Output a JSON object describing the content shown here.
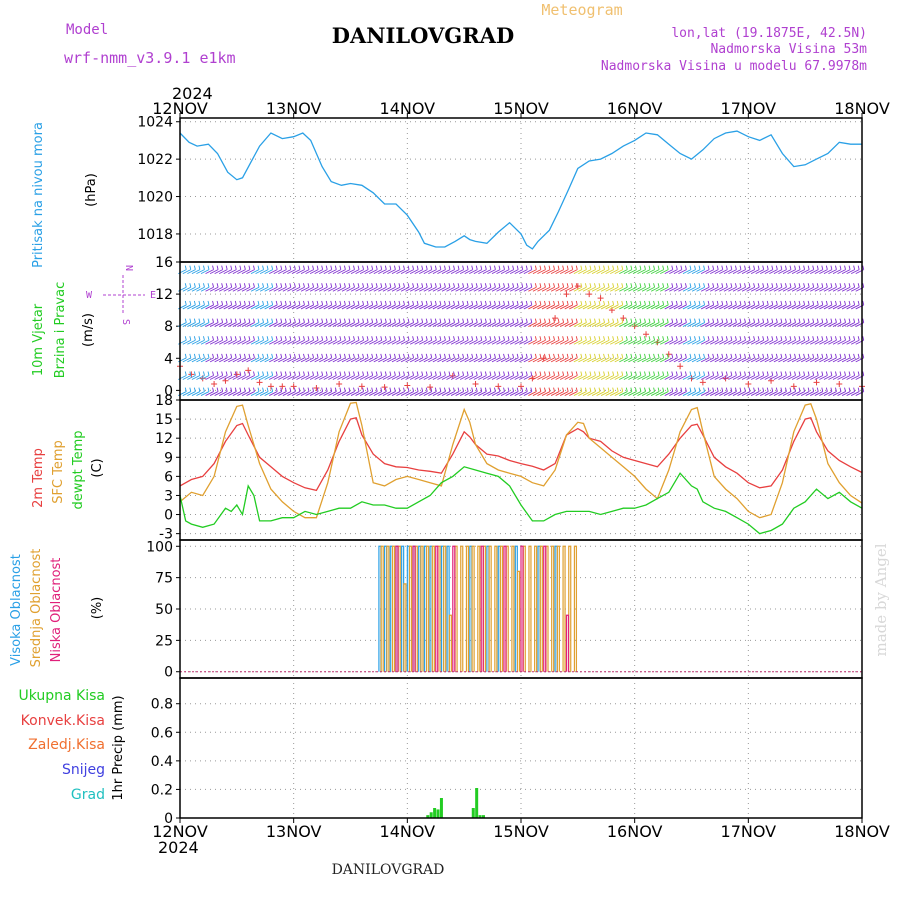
{
  "header": {
    "model_label": "Model",
    "model_name": "wrf-nmm_v3.9.1 e1km",
    "title": "DANILOVGRAD",
    "subtitle": "Meteogram",
    "lonlat": "lon,lat (19.1875E, 42.5N)",
    "elevation": "Nadmorska Visina 53m",
    "model_elevation": "Nadmorska Visina u modelu 67.9978m",
    "year": "2024",
    "footer_title": "DANILOVGRAD",
    "watermark": "made by Angel"
  },
  "colors": {
    "pressure": "#2aa0e6",
    "wind_label": "#22cc22",
    "t2m": "#e84040",
    "sfc": "#e0a030",
    "dewpt": "#22cc22",
    "high_cloud": "#2aa0e6",
    "mid_cloud": "#e0a030",
    "low_cloud": "#e0207a",
    "total_precip": "#22cc22",
    "conv_precip": "#e84040",
    "frz_precip": "#f07030",
    "snow": "#4040e0",
    "grad": "#20c0c0",
    "violet": "#b040d0",
    "frame": "#000000",
    "grid": "#999999"
  },
  "chart_data": [
    {
      "type": "line",
      "panel": "pressure",
      "ylabels": [
        "Pritisak na nivou mora",
        "(hPa)"
      ],
      "x_ticks": [
        "12NOV",
        "13NOV",
        "14NOV",
        "15NOV",
        "16NOV",
        "17NOV",
        "18NOV"
      ],
      "x_range_days": [
        0,
        6
      ],
      "ylim": [
        1016.5,
        1024.2
      ],
      "y_ticks": [
        1018,
        1020,
        1022,
        1024
      ],
      "series": [
        {
          "color": "pressure",
          "x": [
            0,
            0.08,
            0.15,
            0.25,
            0.33,
            0.42,
            0.5,
            0.55,
            0.62,
            0.7,
            0.8,
            0.9,
            1.0,
            1.08,
            1.15,
            1.25,
            1.33,
            1.42,
            1.5,
            1.6,
            1.7,
            1.8,
            1.9,
            2.0,
            2.1,
            2.15,
            2.25,
            2.33,
            2.42,
            2.5,
            2.55,
            2.6,
            2.7,
            2.8,
            2.9,
            3.0,
            3.05,
            3.1,
            3.15,
            3.25,
            3.33,
            3.42,
            3.5,
            3.6,
            3.7,
            3.8,
            3.9,
            4.0,
            4.1,
            4.2,
            4.3,
            4.4,
            4.5,
            4.6,
            4.7,
            4.8,
            4.9,
            5.0,
            5.1,
            5.2,
            5.3,
            5.4,
            5.5,
            5.6,
            5.7,
            5.8,
            5.9,
            6.0
          ],
          "y": [
            1023.4,
            1022.9,
            1022.7,
            1022.8,
            1022.3,
            1021.3,
            1020.9,
            1021.0,
            1021.8,
            1022.7,
            1023.4,
            1023.1,
            1023.2,
            1023.4,
            1023.0,
            1021.6,
            1020.8,
            1020.6,
            1020.7,
            1020.6,
            1020.2,
            1019.6,
            1019.6,
            1019.0,
            1018.1,
            1017.5,
            1017.3,
            1017.3,
            1017.6,
            1017.9,
            1017.7,
            1017.6,
            1017.5,
            1018.1,
            1018.6,
            1018.0,
            1017.4,
            1017.2,
            1017.6,
            1018.2,
            1019.2,
            1020.4,
            1021.5,
            1021.9,
            1022.0,
            1022.3,
            1022.7,
            1023.0,
            1023.4,
            1023.3,
            1022.8,
            1022.3,
            1022.0,
            1022.5,
            1023.1,
            1023.4,
            1023.5,
            1023.2,
            1023.0,
            1023.3,
            1022.3,
            1021.6,
            1021.7,
            1022.0,
            1022.3,
            1022.9,
            1022.8,
            1022.8
          ]
        }
      ]
    },
    {
      "type": "line",
      "panel": "wind",
      "ylabels": [
        "10m Vjetar",
        "Brzina i Pravac",
        "(m/s)"
      ],
      "compass": [
        "N",
        "W",
        "E",
        "S"
      ],
      "ylim": [
        -1.2,
        16
      ],
      "y_ticks": [
        0,
        4,
        8,
        12,
        16
      ],
      "series": [
        {
          "color": "t2m",
          "marker": "+",
          "x": [
            0,
            0.1,
            0.2,
            0.3,
            0.4,
            0.5,
            0.6,
            0.7,
            0.8,
            0.9,
            1.0,
            1.2,
            1.4,
            1.6,
            1.8,
            2.0,
            2.2,
            2.4,
            2.6,
            2.8,
            3.0,
            3.1,
            3.2,
            3.3,
            3.4,
            3.5,
            3.6,
            3.7,
            3.8,
            3.9,
            4.0,
            4.1,
            4.2,
            4.3,
            4.4,
            4.5,
            4.6,
            4.8,
            5.0,
            5.2,
            5.4,
            5.6,
            5.8,
            6.0
          ],
          "y": [
            3,
            2,
            1.5,
            0.8,
            1.2,
            2,
            2.5,
            1,
            0.5,
            0.5,
            0.5,
            0.3,
            0.8,
            0.5,
            0.4,
            0.6,
            0.4,
            1.8,
            0.8,
            0.5,
            0.5,
            1.5,
            4,
            9,
            12,
            13,
            12,
            11.5,
            10,
            9,
            8,
            7,
            6,
            4.5,
            3,
            1.5,
            1,
            1.5,
            0.8,
            1.2,
            0.5,
            1,
            0.8,
            0.5
          ]
        }
      ]
    },
    {
      "type": "line",
      "panel": "temperature",
      "ylabels": [
        "2m Temp",
        "SFC Temp",
        "dewpt Temp",
        "(C)"
      ],
      "ylim": [
        -4,
        18
      ],
      "y_ticks": [
        -3,
        0,
        3,
        6,
        9,
        12,
        15,
        18
      ],
      "series": [
        {
          "color": "t2m",
          "x": [
            0,
            0.1,
            0.2,
            0.3,
            0.4,
            0.5,
            0.55,
            0.6,
            0.7,
            0.8,
            0.9,
            1.0,
            1.1,
            1.2,
            1.3,
            1.4,
            1.5,
            1.55,
            1.6,
            1.7,
            1.8,
            1.9,
            2.0,
            2.1,
            2.2,
            2.3,
            2.4,
            2.5,
            2.55,
            2.6,
            2.7,
            2.8,
            2.9,
            3.0,
            3.1,
            3.2,
            3.3,
            3.4,
            3.5,
            3.55,
            3.6,
            3.7,
            3.8,
            3.9,
            4.0,
            4.1,
            4.2,
            4.3,
            4.4,
            4.5,
            4.55,
            4.6,
            4.7,
            4.8,
            4.9,
            5.0,
            5.1,
            5.2,
            5.3,
            5.4,
            5.5,
            5.55,
            5.6,
            5.7,
            5.8,
            5.9,
            6.0
          ],
          "y": [
            4.5,
            5.5,
            6.0,
            8.0,
            11.5,
            14.0,
            14.3,
            12.5,
            9.0,
            7.5,
            6.0,
            5.0,
            4.2,
            3.8,
            7.0,
            11.5,
            15.0,
            15.2,
            12.5,
            9.5,
            8.0,
            7.5,
            7.4,
            7.0,
            6.8,
            6.5,
            9.5,
            13.0,
            12.2,
            11.0,
            9.5,
            9.2,
            8.5,
            8.0,
            7.6,
            7.0,
            8.0,
            12.5,
            13.5,
            13.0,
            12.0,
            11.5,
            10.0,
            9.0,
            8.5,
            8.0,
            7.5,
            9.5,
            12.0,
            14.0,
            14.2,
            12.5,
            9.0,
            7.5,
            6.5,
            5.0,
            4.2,
            4.5,
            7.0,
            11.5,
            15.0,
            15.2,
            13.0,
            10.0,
            8.5,
            7.5,
            6.6
          ]
        },
        {
          "color": "sfc",
          "x": [
            0,
            0.1,
            0.2,
            0.3,
            0.4,
            0.5,
            0.55,
            0.6,
            0.7,
            0.8,
            0.9,
            1.0,
            1.1,
            1.2,
            1.3,
            1.4,
            1.5,
            1.55,
            1.6,
            1.7,
            1.8,
            1.9,
            2.0,
            2.1,
            2.2,
            2.3,
            2.4,
            2.5,
            2.55,
            2.6,
            2.7,
            2.8,
            2.9,
            3.0,
            3.1,
            3.2,
            3.3,
            3.4,
            3.5,
            3.55,
            3.6,
            3.7,
            3.8,
            3.9,
            4.0,
            4.1,
            4.2,
            4.3,
            4.4,
            4.5,
            4.55,
            4.6,
            4.7,
            4.8,
            4.9,
            5.0,
            5.1,
            5.2,
            5.3,
            5.4,
            5.5,
            5.55,
            5.6,
            5.7,
            5.8,
            5.9,
            6.0
          ],
          "y": [
            2.0,
            3.5,
            3.0,
            6.0,
            13.0,
            17.0,
            17.2,
            14.0,
            8.0,
            4.0,
            2.0,
            0.5,
            -0.5,
            -0.5,
            5.0,
            13.0,
            17.5,
            17.6,
            14.0,
            5.0,
            4.5,
            5.5,
            6.0,
            5.5,
            5.0,
            4.5,
            11.0,
            16.5,
            14.5,
            11.0,
            8.0,
            7.0,
            6.5,
            6.0,
            5.0,
            4.5,
            7.0,
            12.5,
            14.5,
            14.3,
            12.0,
            10.5,
            9.0,
            7.5,
            6.0,
            4.0,
            2.5,
            7.0,
            13.0,
            16.5,
            16.8,
            13.0,
            6.0,
            4.0,
            2.5,
            0.5,
            -0.5,
            0.0,
            5.0,
            13.0,
            17.2,
            17.4,
            15.0,
            8.0,
            5.0,
            3.0,
            1.8
          ]
        },
        {
          "color": "dewpt",
          "x": [
            0,
            0.05,
            0.1,
            0.2,
            0.3,
            0.4,
            0.45,
            0.5,
            0.55,
            0.6,
            0.65,
            0.7,
            0.8,
            0.9,
            1.0,
            1.1,
            1.2,
            1.3,
            1.4,
            1.5,
            1.6,
            1.7,
            1.8,
            1.9,
            2.0,
            2.1,
            2.2,
            2.3,
            2.4,
            2.5,
            2.6,
            2.7,
            2.8,
            2.9,
            3.0,
            3.1,
            3.2,
            3.3,
            3.4,
            3.5,
            3.6,
            3.7,
            3.8,
            3.9,
            4.0,
            4.1,
            4.2,
            4.3,
            4.4,
            4.5,
            4.55,
            4.6,
            4.7,
            4.8,
            4.9,
            5.0,
            5.1,
            5.2,
            5.3,
            5.4,
            5.5,
            5.6,
            5.7,
            5.8,
            5.9,
            6.0
          ],
          "y": [
            3.0,
            -1.0,
            -1.5,
            -2.0,
            -1.5,
            1.0,
            0.5,
            1.5,
            0.0,
            4.5,
            3.0,
            -1.0,
            -1.0,
            -0.5,
            -0.5,
            0.5,
            0.0,
            0.5,
            1.0,
            1.0,
            2.0,
            1.5,
            1.5,
            1.0,
            1.0,
            2.0,
            3.0,
            5.0,
            6.0,
            7.5,
            7.0,
            6.5,
            6.0,
            4.5,
            1.5,
            -1.0,
            -1.0,
            0.0,
            0.5,
            0.5,
            0.5,
            0.0,
            0.5,
            1.0,
            1.0,
            1.5,
            2.5,
            3.5,
            6.5,
            4.5,
            4.0,
            2.0,
            1.0,
            0.5,
            -0.5,
            -1.5,
            -3.0,
            -2.5,
            -1.5,
            1.0,
            2.0,
            4.0,
            2.5,
            3.5,
            2.0,
            1.0
          ]
        }
      ]
    },
    {
      "type": "bar",
      "panel": "clouds",
      "ylabels": [
        "Visoka Oblacnost",
        "Srednja Oblacnost",
        "Niska Oblacnost",
        "(%)"
      ],
      "ylim": [
        -5,
        105
      ],
      "y_ticks": [
        0,
        25,
        50,
        75,
        100
      ],
      "series": [
        {
          "name": "Visoka Oblacnost",
          "color": "high_cloud",
          "x": [
            1.75,
            1.8,
            1.85,
            1.9,
            1.95,
            2.0,
            2.05,
            2.1,
            2.15,
            2.2,
            2.3,
            2.35,
            2.55,
            2.7,
            2.8,
            2.95,
            3.15,
            3.3
          ],
          "values": [
            100,
            100,
            100,
            100,
            100,
            100,
            100,
            100,
            100,
            100,
            100,
            100,
            100,
            100,
            100,
            100,
            100,
            100
          ]
        },
        {
          "name": "Srednja Oblacnost",
          "color": "mid_cloud",
          "x": [
            1.77,
            1.82,
            1.87,
            1.92,
            1.97,
            2.02,
            2.07,
            2.12,
            2.17,
            2.22,
            2.27,
            2.32,
            2.37,
            2.42,
            2.47,
            2.52,
            2.57,
            2.62,
            2.67,
            2.72,
            2.77,
            2.82,
            2.87,
            2.92,
            2.97,
            3.02,
            3.07,
            3.12,
            3.17,
            3.22,
            3.27,
            3.32,
            3.37,
            3.42,
            3.47
          ],
          "values": [
            100,
            100,
            100,
            100,
            70,
            100,
            100,
            100,
            100,
            100,
            100,
            100,
            45,
            100,
            100,
            100,
            100,
            100,
            100,
            100,
            100,
            100,
            100,
            100,
            80,
            100,
            100,
            100,
            100,
            100,
            100,
            100,
            100,
            100,
            100
          ]
        },
        {
          "name": "Niska Oblacnost",
          "color": "low_cloud",
          "x": [
            1.9,
            2.05,
            2.25,
            2.4,
            2.65,
            2.85,
            3.0,
            3.2,
            3.4
          ],
          "values": [
            100,
            100,
            100,
            100,
            100,
            100,
            100,
            100,
            45
          ]
        }
      ]
    },
    {
      "type": "bar",
      "panel": "precip",
      "ylabels": [
        "1hr Precip (mm)"
      ],
      "legend": [
        "Ukupna Kisa",
        "Konvek.Kisa",
        "Zaledj.Kisa",
        "Snijeg",
        "Grad"
      ],
      "ylim": [
        0,
        0.98
      ],
      "y_ticks": [
        0,
        0.2,
        0.4,
        0.6,
        0.8
      ],
      "y_tick_labels": [
        "0",
        "0.2",
        "0.4",
        "0.6",
        "0.8"
      ],
      "series": [
        {
          "name": "Ukupna Kisa",
          "color": "total_precip",
          "x": [
            2.18,
            2.21,
            2.24,
            2.27,
            2.3,
            2.58,
            2.61,
            2.64,
            2.67
          ],
          "values": [
            0.02,
            0.04,
            0.07,
            0.06,
            0.14,
            0.07,
            0.21,
            0.02,
            0.02
          ]
        }
      ]
    }
  ]
}
